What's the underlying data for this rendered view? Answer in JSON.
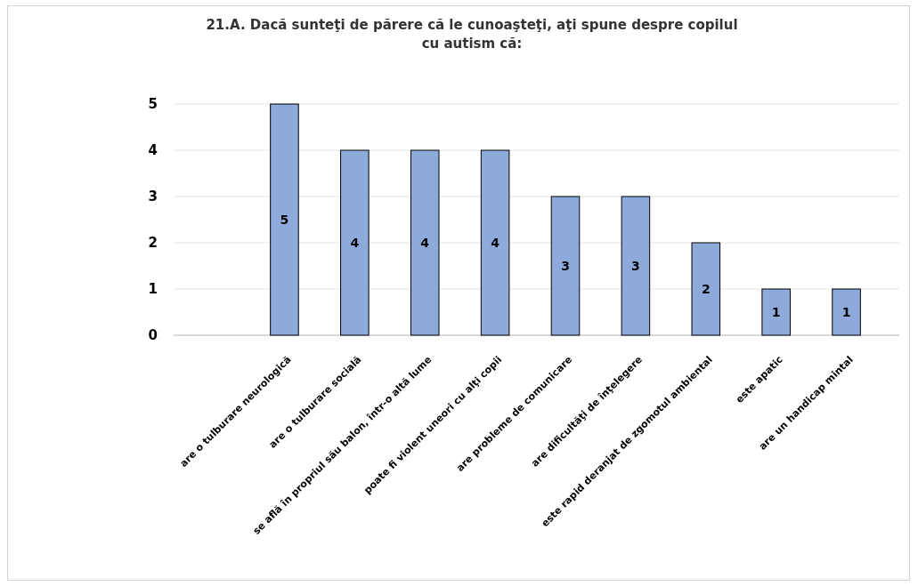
{
  "chart_data": {
    "type": "bar",
    "title": "21.A. Dacă sunteţi de părere  că le cunoaşteţi, aţi spune despre copilul cu autism că:",
    "categories": [
      "are o tulburare neurologică",
      "are o tulburare socială",
      "se află în propriul său balon, într-o altă lume",
      "poate fi violent uneori cu alţi copii",
      "are probleme de comunicare",
      "are dificultăţi de înţelegere",
      "este rapid deranjat de zgomotul ambiental",
      "este apatic",
      "are un handicap mintal"
    ],
    "values": [
      5,
      4,
      4,
      4,
      3,
      3,
      2,
      1,
      1
    ],
    "color": "#8eaadb",
    "ylim": [
      0,
      5
    ],
    "yticks": [
      0,
      1,
      2,
      3,
      4,
      5
    ],
    "grid": "y",
    "data_labels": true
  }
}
